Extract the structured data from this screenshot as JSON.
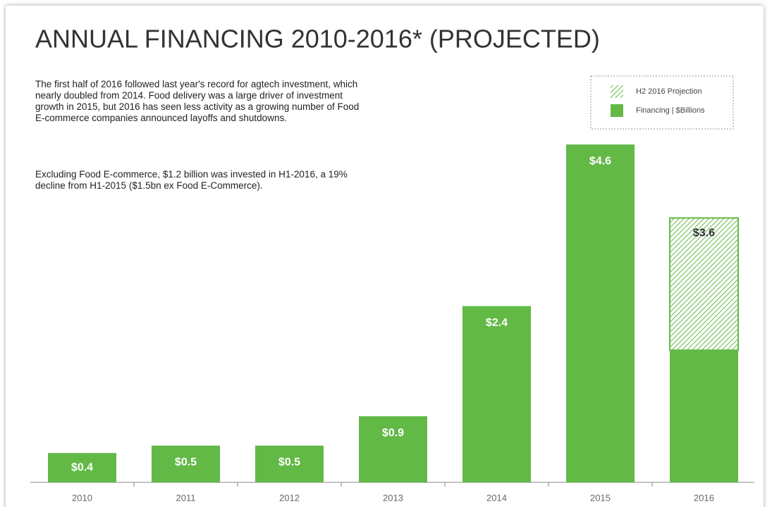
{
  "chart_data": {
    "type": "bar",
    "title": "ANNUAL FINANCING 2010-2016* (PROJECTED)",
    "description": [
      "The first half of 2016 followed last year's record for agtech investment, which nearly doubled from 2014. Food delivery was a large driver of investment growth in 2015, but 2016 has seen less activity as a growing number of Food E-commerce companies announced layoffs and shutdowns.",
      "Excluding Food E-commerce, $1.2 billion was invested in H1-2016, a 19% decline from H1-2015 ($1.5bn ex Food E-Commerce)."
    ],
    "categories": [
      "2010",
      "2011",
      "2012",
      "2013",
      "2014",
      "2015",
      "2016"
    ],
    "series": [
      {
        "name": "Financing | $Billions",
        "color": "#62b946",
        "values": [
          0.4,
          0.5,
          0.5,
          0.9,
          2.4,
          4.6,
          1.8
        ],
        "value_labels": [
          "$0.4",
          "$0.5",
          "$0.5",
          "$0.9",
          "$2.4",
          "$4.6",
          null
        ]
      },
      {
        "name": "H2 2016 Projection",
        "color": "#62b946",
        "hatched": true,
        "values": [
          null,
          null,
          null,
          null,
          null,
          null,
          1.8
        ]
      }
    ],
    "annotations": [
      {
        "text": "$3.6",
        "value": 3.6,
        "category": 6
      }
    ],
    "legend": "top-right"
  }
}
